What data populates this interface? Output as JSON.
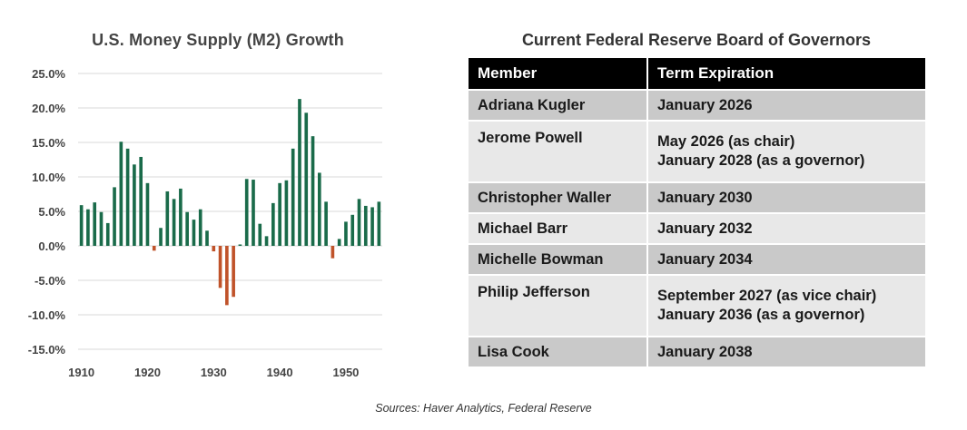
{
  "chart_title": "U.S. Money Supply (M2) Growth",
  "table_title": "Current Federal Reserve Board of Governors",
  "sources": "Sources: Haver Analytics, Federal Reserve",
  "colors": {
    "positive": "#1a6b4a",
    "negative": "#c0532a",
    "grid": "#d9d9d9",
    "header_bg": "#000000",
    "row_dark": "#c9c9c9",
    "row_light": "#e8e8e8"
  },
  "table": {
    "headers": [
      "Member",
      "Term Expiration"
    ],
    "rows": [
      {
        "member": "Adriana Kugler",
        "term": [
          "January 2026"
        ]
      },
      {
        "member": "Jerome Powell",
        "term": [
          "May 2026 (as chair)",
          "January 2028 (as a governor)"
        ]
      },
      {
        "member": "Christopher Waller",
        "term": [
          "January 2030"
        ]
      },
      {
        "member": "Michael Barr",
        "term": [
          "January 2032"
        ]
      },
      {
        "member": "Michelle Bowman",
        "term": [
          "January 2034"
        ]
      },
      {
        "member": "Philip Jefferson",
        "term": [
          "September 2027 (as vice chair)",
          "January 2036 (as a governor)"
        ]
      },
      {
        "member": "Lisa Cook",
        "term": [
          "January 2038"
        ]
      }
    ]
  },
  "chart_data": {
    "type": "bar",
    "title": "U.S. Money Supply (M2) Growth",
    "xlabel": "",
    "ylabel": "",
    "ylim": [
      -15,
      25
    ],
    "yticks": [
      "25.0%",
      "20.0%",
      "15.0%",
      "10.0%",
      "5.0%",
      "0.0%",
      "-5.0%",
      "-10.0%",
      "-15.0%"
    ],
    "ytick_values": [
      25,
      20,
      15,
      10,
      5,
      0,
      -5,
      -10,
      -15
    ],
    "xlim": [
      1909.5,
      1955.5
    ],
    "xticks": [
      "1910",
      "1920",
      "1930",
      "1940",
      "1950"
    ],
    "xtick_values": [
      1910,
      1920,
      1930,
      1940,
      1950
    ],
    "grid": true,
    "x": [
      1910,
      1911,
      1912,
      1913,
      1914,
      1915,
      1916,
      1917,
      1918,
      1919,
      1920,
      1921,
      1922,
      1923,
      1924,
      1925,
      1926,
      1927,
      1928,
      1929,
      1930,
      1931,
      1932,
      1933,
      1934,
      1935,
      1936,
      1937,
      1938,
      1939,
      1940,
      1941,
      1942,
      1943,
      1944,
      1945,
      1946,
      1947,
      1948,
      1949,
      1950,
      1951,
      1952,
      1953,
      1954,
      1955
    ],
    "values": [
      5.9,
      5.3,
      6.3,
      4.9,
      3.3,
      8.5,
      15.1,
      14.1,
      11.8,
      12.9,
      9.1,
      -0.7,
      2.6,
      7.9,
      6.8,
      8.3,
      4.9,
      3.8,
      5.3,
      2.2,
      -0.8,
      -6.1,
      -8.6,
      -7.4,
      0.2,
      9.7,
      9.6,
      3.2,
      1.4,
      6.2,
      9.1,
      9.5,
      14.1,
      21.3,
      19.3,
      15.9,
      10.6,
      6.4,
      -1.8,
      1.0,
      3.5,
      4.5,
      6.8,
      5.8,
      5.6,
      6.4
    ]
  }
}
